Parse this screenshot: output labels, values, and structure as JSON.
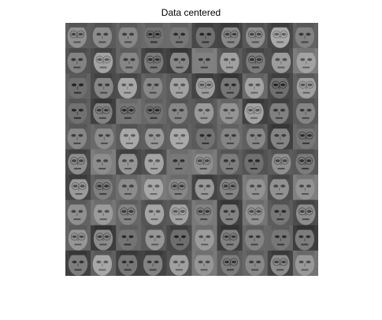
{
  "figure": {
    "title": "Data centered",
    "background": "#ffffff",
    "image": {
      "description_grid": {
        "rows": 10,
        "cols": 10
      },
      "colormap": "gray"
    }
  }
}
